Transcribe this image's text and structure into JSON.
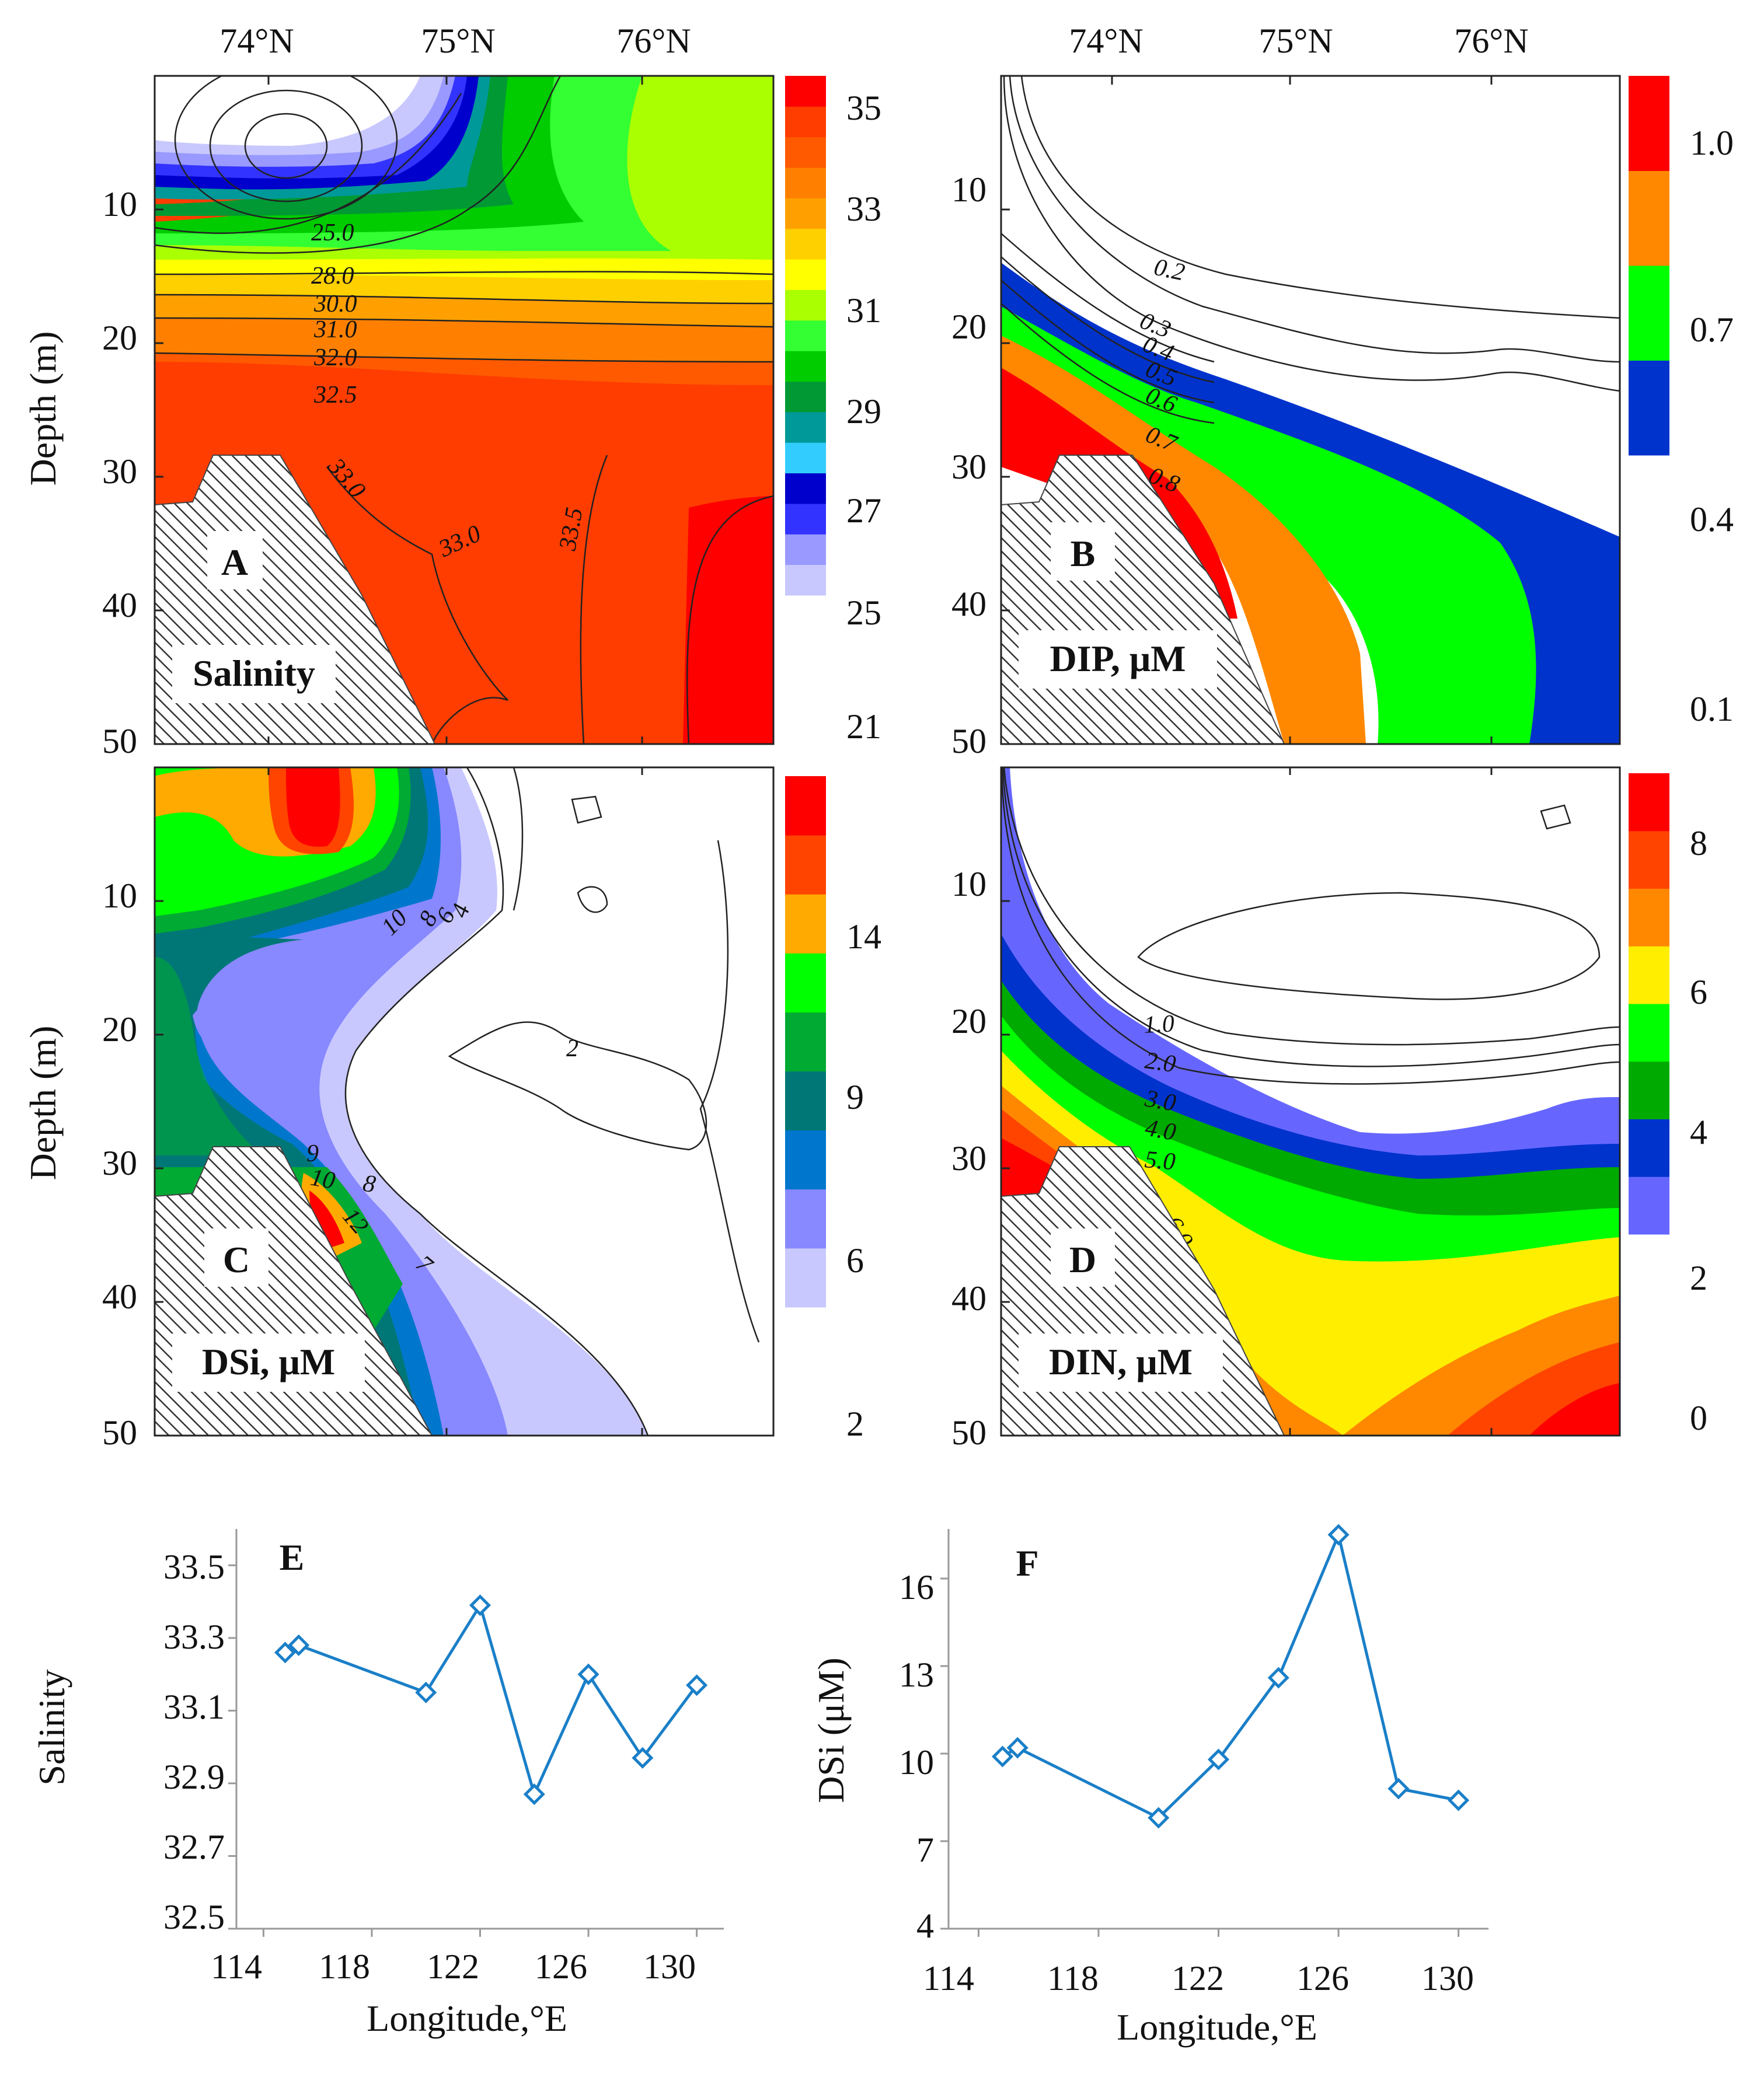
{
  "chart_data": [
    {
      "panel": "A",
      "type": "contour",
      "label": "Salinity",
      "top_ticks": [
        "74°N",
        "75°N",
        "76°N"
      ],
      "ylabel": "Depth (m)",
      "y_ticks": [
        "10",
        "20",
        "30",
        "40",
        "50"
      ],
      "ylim": [
        0,
        50
      ],
      "colorbar_ticks": [
        "35",
        "33",
        "31",
        "29",
        "27",
        "25",
        "21"
      ],
      "colors": [
        "#c8c8ff",
        "#9999ff",
        "#3333ff",
        "#0000cc",
        "#33ccff",
        "#009999",
        "#009933",
        "#00cc00",
        "#33ff33",
        "#aaff00",
        "#ffff00",
        "#ffd000",
        "#ffa000",
        "#ff8000",
        "#ff5a00",
        "#ff3d00",
        "#ff0000"
      ],
      "contour_labels": [
        "25.0",
        "28.0",
        "30.0",
        "31.0",
        "32.0",
        "32.5",
        "33.0",
        "33.0",
        "33.5"
      ]
    },
    {
      "panel": "B",
      "type": "contour",
      "label": "DIP, μM",
      "top_ticks": [
        "74°N",
        "75°N",
        "76°N"
      ],
      "y_ticks": [
        "10",
        "20",
        "30",
        "40",
        "50"
      ],
      "ylim": [
        0,
        50
      ],
      "colorbar_ticks": [
        "1.0",
        "0.7",
        "0.4",
        "0.1"
      ],
      "colors": [
        "#0033cc",
        "#00ff00",
        "#ff8800",
        "#ff0000"
      ],
      "contour_labels": [
        "0.2",
        "0.3",
        "0.4",
        "0.5",
        "0.6",
        "0.7",
        "0.8"
      ]
    },
    {
      "panel": "C",
      "type": "contour",
      "label": "DSi, μM",
      "ylabel": "Depth (m)",
      "y_ticks": [
        "10",
        "20",
        "30",
        "40",
        "50"
      ],
      "ylim": [
        0,
        50
      ],
      "colorbar_ticks": [
        "14",
        "9",
        "6",
        "2"
      ],
      "colors": [
        "#c8c8ff",
        "#8888ff",
        "#0077cc",
        "#007777",
        "#00aa33",
        "#00ff00",
        "#ffaa00",
        "#ff4400",
        "#ff0000"
      ],
      "contour_labels": [
        "2",
        "4",
        "6",
        "8",
        "10",
        "9",
        "10",
        "8",
        "12",
        "7"
      ]
    },
    {
      "panel": "D",
      "type": "contour",
      "label": "DIN, μM",
      "y_ticks": [
        "10",
        "20",
        "30",
        "40",
        "50"
      ],
      "ylim": [
        0,
        50
      ],
      "colorbar_ticks": [
        "8",
        "6",
        "4",
        "2",
        "0"
      ],
      "colors": [
        "#6666ff",
        "#0033cc",
        "#00aa00",
        "#00ff00",
        "#ffee00",
        "#ff8800",
        "#ff4400",
        "#ff0000"
      ],
      "contour_labels": [
        "1.0",
        "2.0",
        "3.0",
        "4.0",
        "5.0",
        "6.0"
      ]
    },
    {
      "panel": "E",
      "type": "line",
      "xlabel": "Longitude,°E",
      "ylabel": "Salinity",
      "x_ticks": [
        "114",
        "118",
        "122",
        "126",
        "130"
      ],
      "y_ticks": [
        "33.5",
        "33.3",
        "33.1",
        "32.9",
        "32.7",
        "32.5"
      ],
      "xlim": [
        113,
        131
      ],
      "ylim": [
        32.5,
        33.6
      ],
      "series": [
        {
          "name": "Salinity",
          "x": [
            114.8,
            115.3,
            120,
            122,
            124,
            126,
            128,
            130
          ],
          "values": [
            33.26,
            33.28,
            33.15,
            33.39,
            32.87,
            33.2,
            32.97,
            33.17
          ]
        }
      ]
    },
    {
      "panel": "F",
      "type": "line",
      "xlabel": "Longitude,°E",
      "ylabel": "DSi (μM)",
      "x_ticks": [
        "114",
        "118",
        "122",
        "126",
        "130"
      ],
      "y_ticks": [
        "16",
        "13",
        "10",
        "7",
        "4"
      ],
      "xlim": [
        113,
        131
      ],
      "ylim": [
        4,
        17.7
      ],
      "series": [
        {
          "name": "DSi",
          "x": [
            114.8,
            115.3,
            120,
            122,
            124,
            126,
            128,
            130
          ],
          "values": [
            9.9,
            10.2,
            7.8,
            9.8,
            12.6,
            17.5,
            8.8,
            8.4
          ]
        }
      ]
    }
  ],
  "line_color": "#1a7fc8"
}
